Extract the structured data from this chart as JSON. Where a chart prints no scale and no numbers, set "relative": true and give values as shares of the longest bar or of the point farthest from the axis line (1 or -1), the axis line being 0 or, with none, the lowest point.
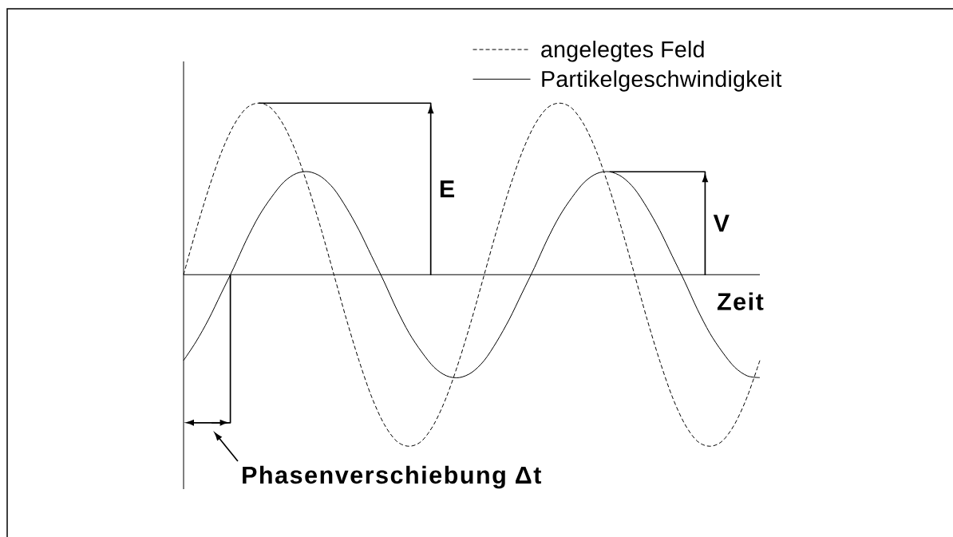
{
  "chart_data": {
    "type": "line",
    "relative": true,
    "xlabel": "Zeit",
    "categories": [
      null,
      null,
      null,
      null,
      null,
      null,
      null,
      null,
      null,
      null,
      null,
      null,
      null,
      null,
      null,
      null,
      null,
      null,
      null,
      null,
      null,
      null,
      null,
      null,
      null,
      null,
      null,
      null,
      null,
      null,
      null,
      null,
      null,
      null,
      null,
      null,
      null,
      null,
      null,
      null,
      null,
      null,
      null,
      null,
      null,
      null,
      null
    ],
    "series": [
      {
        "name": "angelegtes Feld",
        "color": "#000000",
        "line_style": "dashed",
        "values": [
          0,
          0.26,
          0.5,
          0.71,
          0.87,
          0.97,
          1,
          0.97,
          0.87,
          0.71,
          0.5,
          0.26,
          0,
          -0.26,
          -0.5,
          -0.71,
          -0.87,
          -0.97,
          -1,
          -0.97,
          -0.87,
          -0.71,
          -0.5,
          -0.26,
          0,
          0.26,
          0.5,
          0.71,
          0.87,
          0.97,
          1,
          0.97,
          0.87,
          0.71,
          0.5,
          0.26,
          0,
          -0.26,
          -0.5,
          -0.71,
          -0.87,
          -0.97,
          -1,
          -0.97,
          -0.87,
          -0.71,
          -0.5
        ]
      },
      {
        "name": "Partikelgeschwindigkeit",
        "color": "#000000",
        "line_style": "solid",
        "values": [
          -0.5,
          -0.39,
          -0.26,
          -0.11,
          0.04,
          0.2,
          0.34,
          0.45,
          0.54,
          0.59,
          0.6,
          0.57,
          0.5,
          0.39,
          0.26,
          0.11,
          -0.04,
          -0.2,
          -0.34,
          -0.45,
          -0.54,
          -0.59,
          -0.6,
          -0.57,
          -0.5,
          -0.39,
          -0.26,
          -0.11,
          0.04,
          0.2,
          0.34,
          0.45,
          0.54,
          0.59,
          0.6,
          0.57,
          0.5,
          0.39,
          0.26,
          0.11,
          -0.04,
          -0.2,
          -0.34,
          -0.45,
          -0.54,
          -0.59,
          -0.6
        ]
      }
    ],
    "ref_lines": [
      {
        "axis": "y",
        "value": 0,
        "color": "#000000"
      }
    ],
    "legend": "top right",
    "annotations": [
      "E",
      "V",
      "Phasenverschiebung Δt"
    ]
  }
}
